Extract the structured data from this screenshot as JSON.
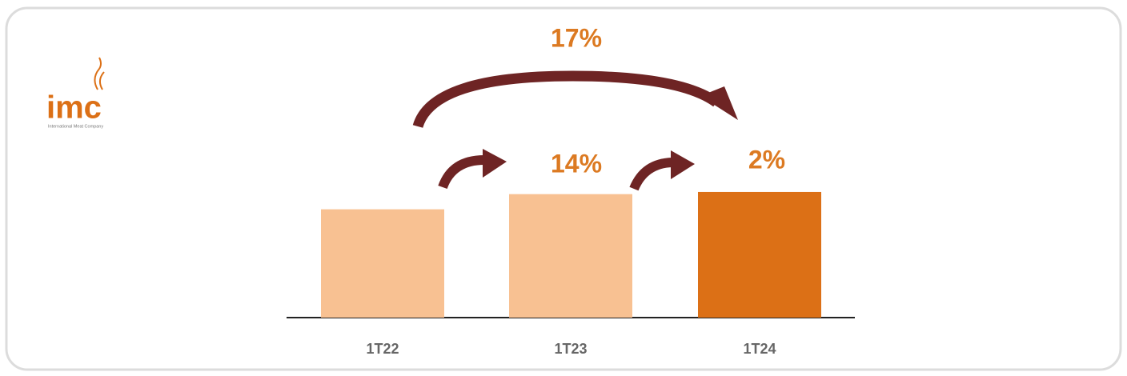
{
  "logo": {
    "text": "imc",
    "tagline": "International Meat Company"
  },
  "chart_data": {
    "type": "bar",
    "categories": [
      "1T22",
      "1T23",
      "1T24"
    ],
    "values": [
      100,
      114,
      116
    ],
    "colors": [
      "#f8c192",
      "#f8c192",
      "#dc7016"
    ],
    "ylim": [
      0,
      130
    ],
    "annotations": [
      "17%",
      "14%",
      "2%"
    ],
    "annotation_color": "#dc7a22",
    "arrow_color": "#6e2424"
  }
}
